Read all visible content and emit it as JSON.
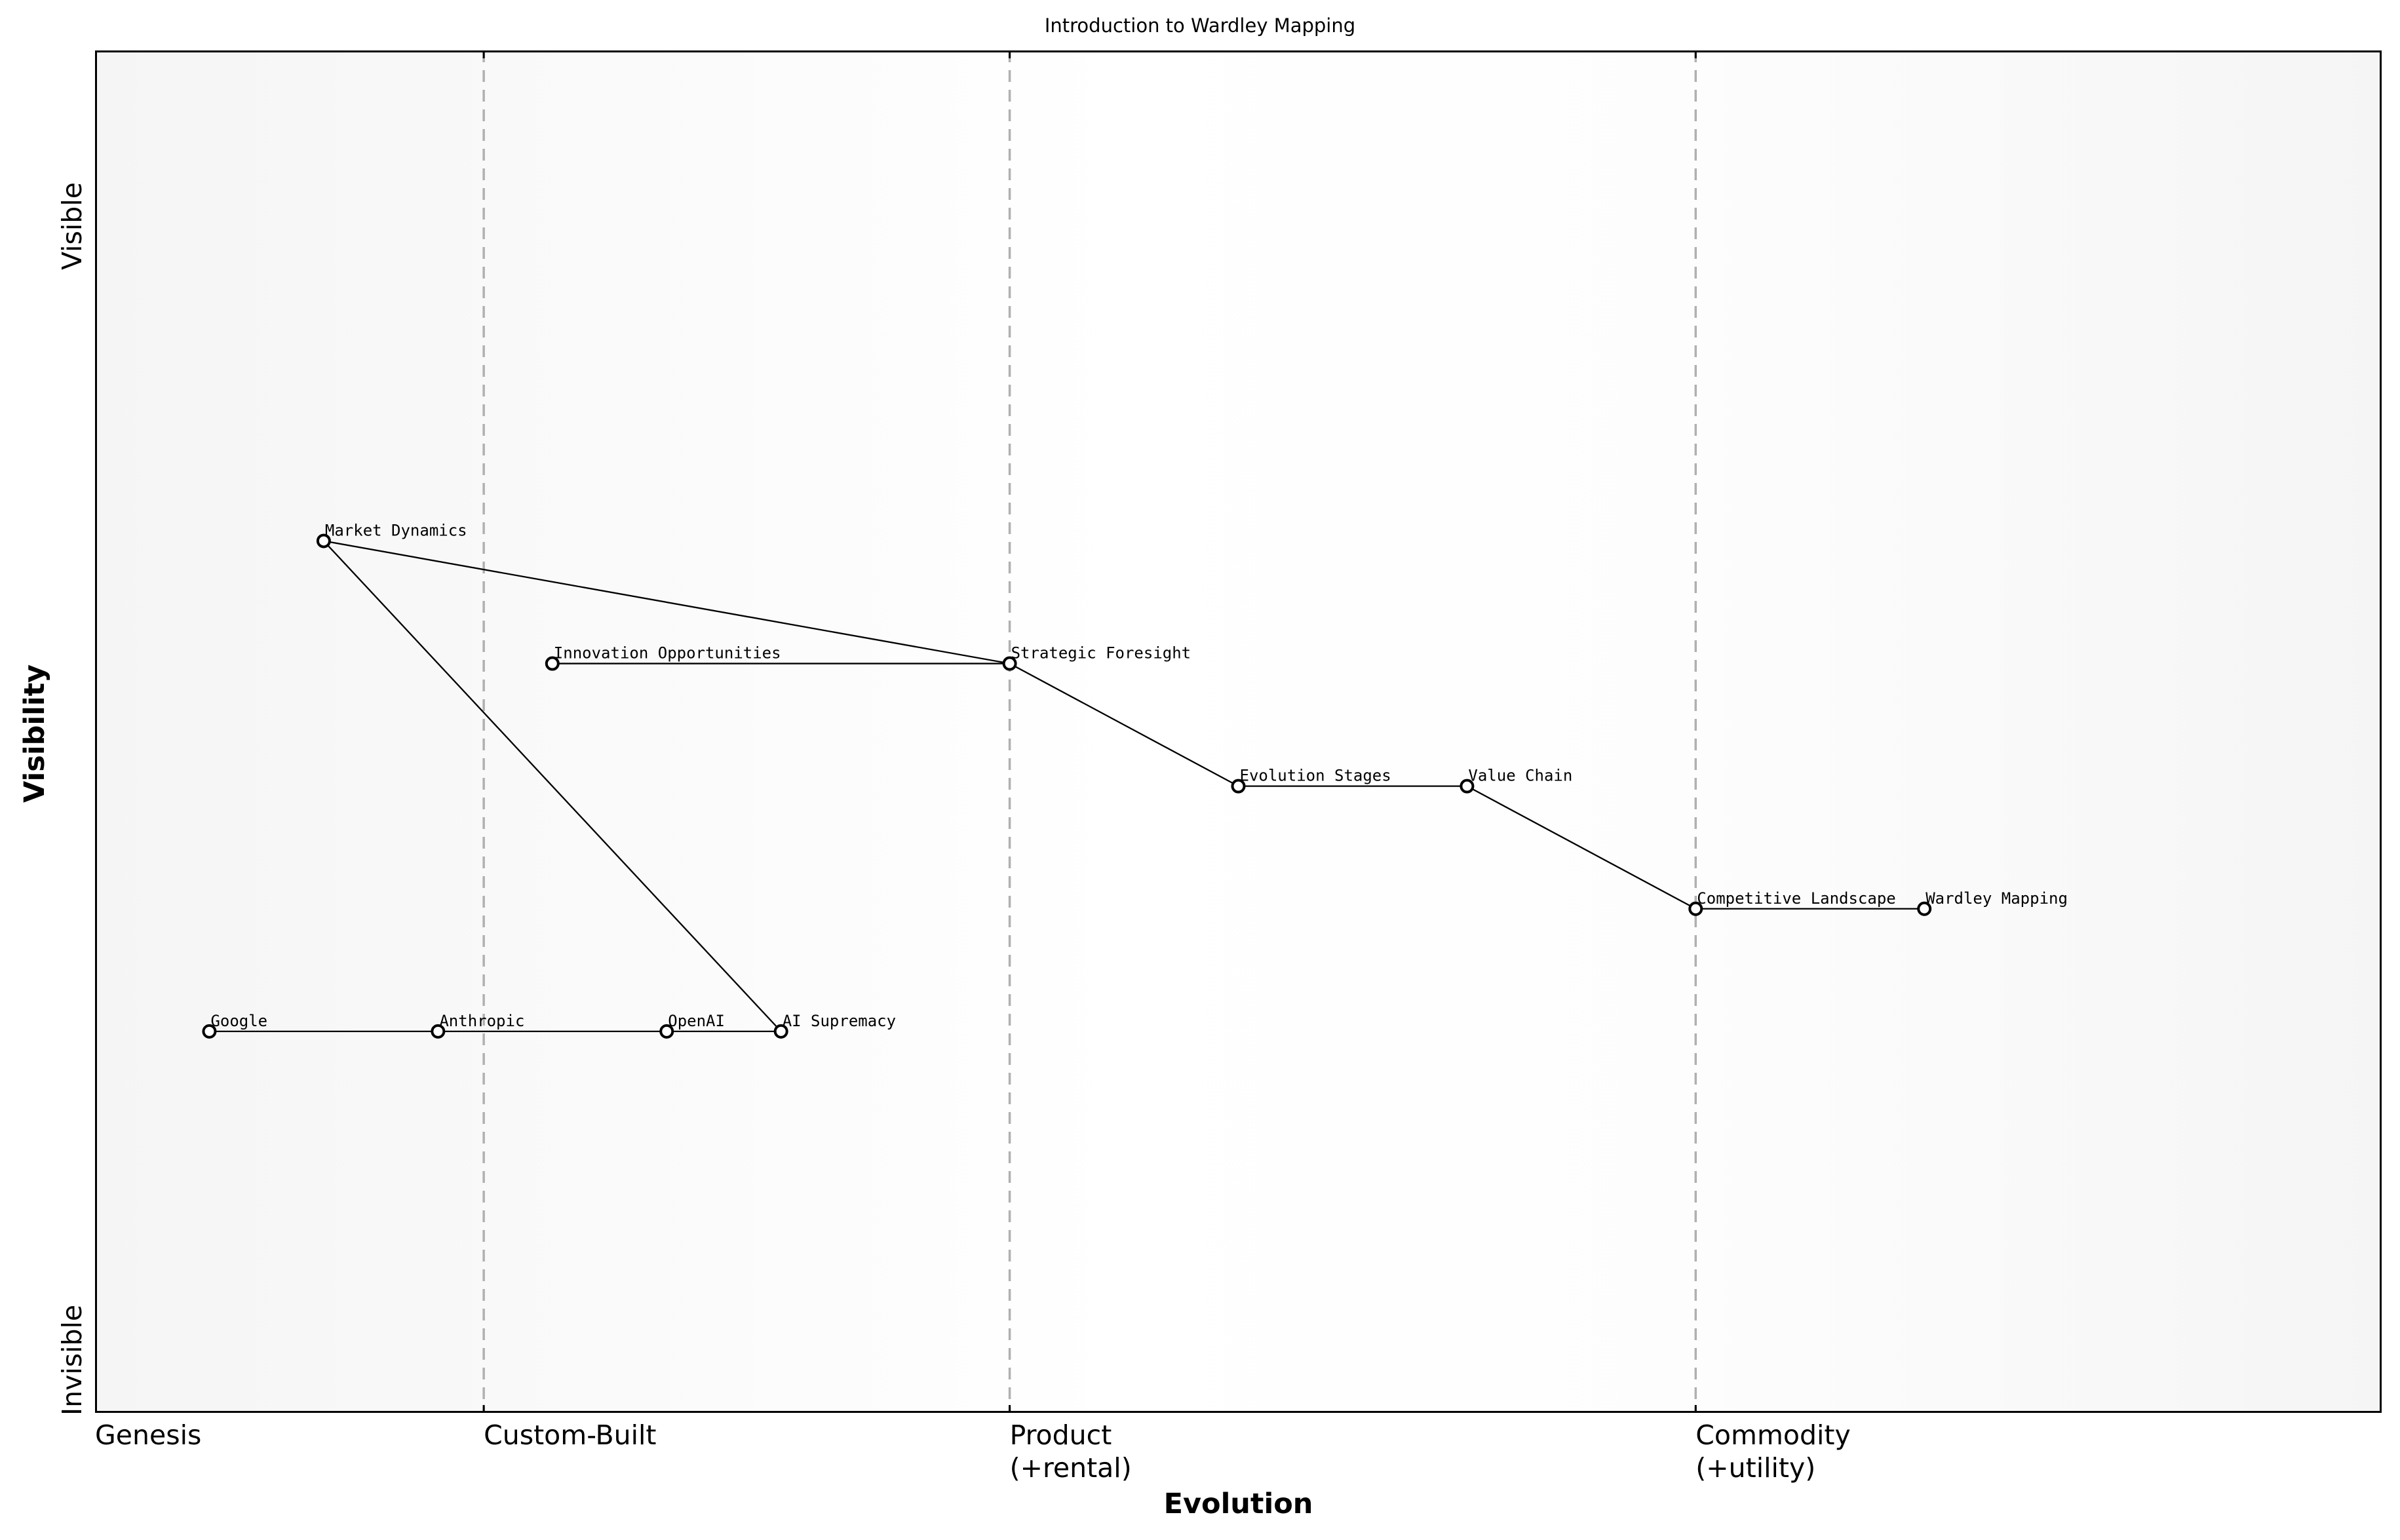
{
  "title": "Introduction to Wardley Mapping",
  "axes": {
    "y_title": "Visibility",
    "y_top_label": "Visible",
    "y_bottom_label": "Invisible",
    "x_title": "Evolution",
    "x_stages": [
      {
        "label": "Genesis",
        "x": 0.0
      },
      {
        "label": "Custom-Built",
        "x": 0.17
      },
      {
        "label": "Product\n(+rental)",
        "x": 0.4
      },
      {
        "label": "Commodity\n(+utility)",
        "x": 0.7
      }
    ]
  },
  "chart_data": {
    "type": "scatter",
    "title": "Introduction to Wardley Mapping",
    "xlabel": "Evolution",
    "ylabel": "Visibility",
    "xlim": [
      0,
      1
    ],
    "ylim": [
      0,
      1
    ],
    "grid": false,
    "stage_dividers_x": [
      0.17,
      0.4,
      0.7
    ],
    "nodes": [
      {
        "name": "Market Dynamics",
        "x": 0.1,
        "y": 0.64
      },
      {
        "name": "Innovation Opportunities",
        "x": 0.2,
        "y": 0.55
      },
      {
        "name": "Strategic Foresight",
        "x": 0.4,
        "y": 0.55
      },
      {
        "name": "Evolution Stages",
        "x": 0.5,
        "y": 0.46
      },
      {
        "name": "Value Chain",
        "x": 0.6,
        "y": 0.46
      },
      {
        "name": "Competitive Landscape",
        "x": 0.7,
        "y": 0.37
      },
      {
        "name": "Wardley Mapping",
        "x": 0.8,
        "y": 0.37
      },
      {
        "name": "Google",
        "x": 0.05,
        "y": 0.28
      },
      {
        "name": "Anthropic",
        "x": 0.15,
        "y": 0.28
      },
      {
        "name": "OpenAI",
        "x": 0.25,
        "y": 0.28
      },
      {
        "name": "AI Supremacy",
        "x": 0.3,
        "y": 0.28
      }
    ],
    "links": [
      [
        "Market Dynamics",
        "Strategic Foresight"
      ],
      [
        "Market Dynamics",
        "AI Supremacy"
      ],
      [
        "Innovation Opportunities",
        "Strategic Foresight"
      ],
      [
        "Strategic Foresight",
        "Evolution Stages"
      ],
      [
        "Evolution Stages",
        "Value Chain"
      ],
      [
        "Value Chain",
        "Competitive Landscape"
      ],
      [
        "Competitive Landscape",
        "Wardley Mapping"
      ],
      [
        "Google",
        "Anthropic"
      ],
      [
        "Anthropic",
        "OpenAI"
      ],
      [
        "OpenAI",
        "AI Supremacy"
      ]
    ]
  },
  "colors": {
    "background_edge": "#f5f5f5",
    "background_mid": "#ffffff",
    "divider": "#b0b0b0",
    "line": "#000000",
    "node_fill": "#ffffff"
  }
}
